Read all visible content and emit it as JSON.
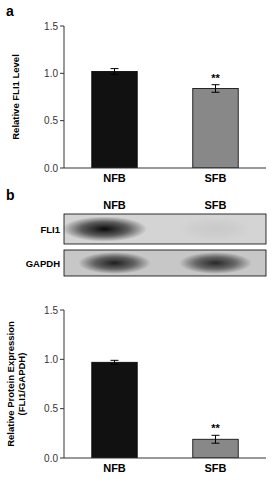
{
  "chart_data": [
    {
      "type": "bar",
      "title": "a",
      "categories": [
        "NFB",
        "SFB"
      ],
      "values": [
        1.02,
        0.84
      ],
      "errors": [
        0.03,
        0.04
      ],
      "colors": [
        "#111111",
        "#888888"
      ],
      "ylim": [
        0,
        1.5
      ],
      "yticks": [
        {
          "value": 0,
          "label": "0.0"
        },
        0.5,
        {
          "value": 1,
          "label": "1.0"
        },
        1.5
      ],
      "ylabel": "Relative FLI1 Level",
      "annotations": [
        {
          "text": "**",
          "category": "SFB"
        }
      ],
      "grid": false
    },
    {
      "type": "bar",
      "title": "b",
      "categories": [
        "NFB",
        "SFB"
      ],
      "values": [
        0.97,
        0.19
      ],
      "errors": [
        0.02,
        0.04
      ],
      "colors": [
        "#111111",
        "#888888"
      ],
      "ylim": [
        0,
        1.5
      ],
      "yticks": [
        {
          "value": 0,
          "label": "0.0"
        },
        0.5,
        {
          "value": 1,
          "label": "1.0"
        },
        1.5
      ],
      "ylabel": "Relative Protein Expression\n(FLI1/GAPDH)",
      "annotations": [
        {
          "text": "**",
          "category": "SFB"
        }
      ],
      "blot_header": [
        "NFB",
        "SFB"
      ],
      "blot_rows": [
        "FLI1",
        "GAPDH"
      ],
      "grid": false
    }
  ]
}
